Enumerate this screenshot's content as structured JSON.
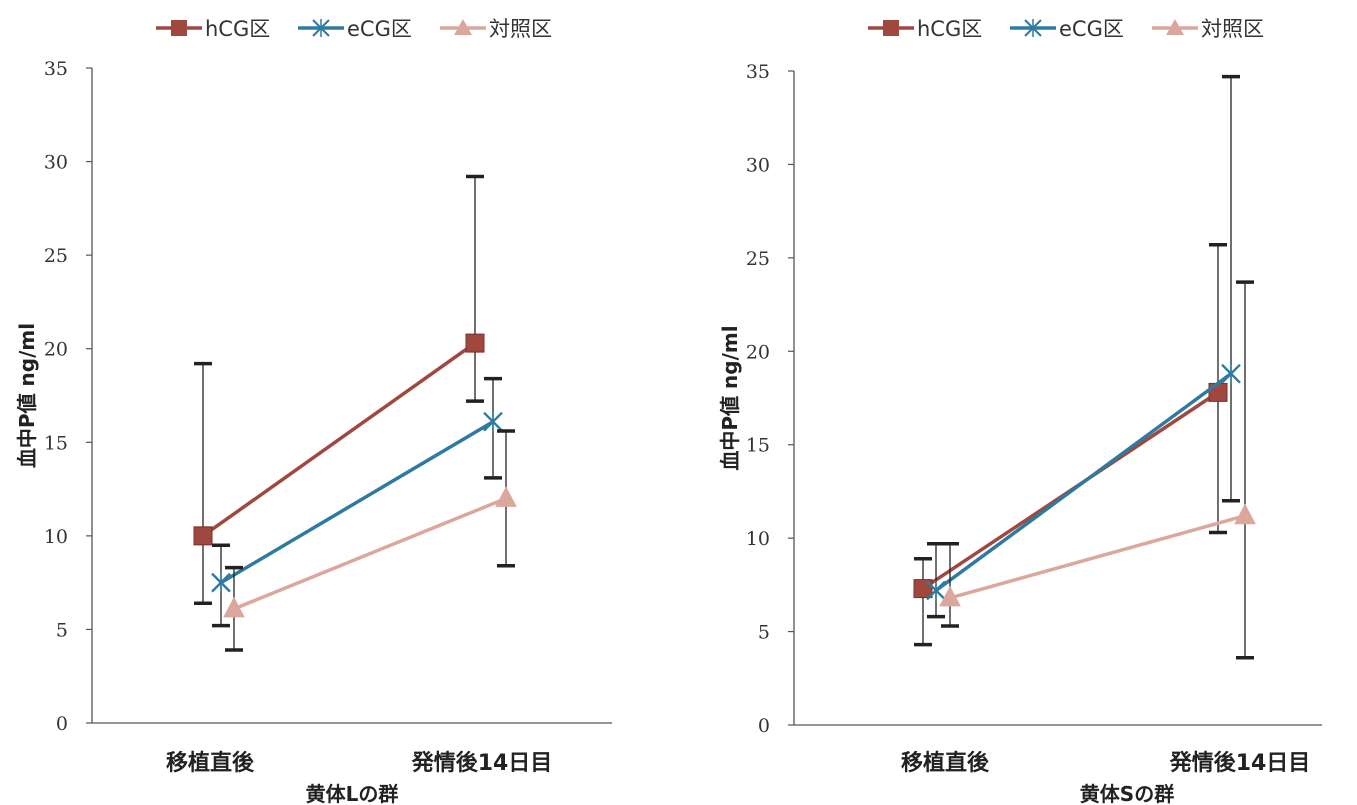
{
  "chart_data": [
    {
      "type": "line",
      "categories": [
        "移植直後",
        "発情後14日目"
      ],
      "xlabel": "黄体Lの群",
      "ylabel": "血中P値 ng/ml",
      "ylim": [
        0,
        35
      ],
      "yticks": [
        0,
        5,
        10,
        15,
        20,
        25,
        30,
        35
      ],
      "grid": false,
      "legend": "top",
      "series": [
        {
          "name": "hCG区",
          "color": "#a0473f",
          "marker": "square",
          "values": [
            10.0,
            20.3
          ],
          "error_low": [
            6.4,
            17.2
          ],
          "error_high": [
            19.2,
            29.2
          ]
        },
        {
          "name": "eCG区",
          "color": "#2f7aa0",
          "marker": "star",
          "values": [
            7.5,
            16.1
          ],
          "error_low": [
            5.2,
            13.1
          ],
          "error_high": [
            9.5,
            18.4
          ]
        },
        {
          "name": "対照区",
          "color": "#dba79c",
          "marker": "triangle",
          "values": [
            6.1,
            12.0
          ],
          "error_low": [
            3.9,
            8.4
          ],
          "error_high": [
            8.3,
            15.6
          ]
        }
      ]
    },
    {
      "type": "line",
      "categories": [
        "移植直後",
        "発情後14日目"
      ],
      "xlabel": "黄体Sの群",
      "ylabel": "血中P値 ng/ml",
      "ylim": [
        0,
        35
      ],
      "yticks": [
        0,
        5,
        10,
        15,
        20,
        25,
        30,
        35
      ],
      "grid": false,
      "legend": "top",
      "series": [
        {
          "name": "hCG区",
          "color": "#a0473f",
          "marker": "square",
          "values": [
            7.3,
            17.8
          ],
          "error_low": [
            4.3,
            10.3
          ],
          "error_high": [
            8.9,
            25.7
          ]
        },
        {
          "name": "eCG区",
          "color": "#2f7aa0",
          "marker": "star",
          "values": [
            7.2,
            18.8
          ],
          "error_low": [
            5.8,
            12.0
          ],
          "error_high": [
            9.7,
            34.7
          ]
        },
        {
          "name": "対照区",
          "color": "#dba79c",
          "marker": "triangle",
          "values": [
            6.8,
            11.2
          ],
          "error_low": [
            5.3,
            3.6
          ],
          "error_high": [
            9.7,
            23.7
          ]
        }
      ]
    }
  ]
}
